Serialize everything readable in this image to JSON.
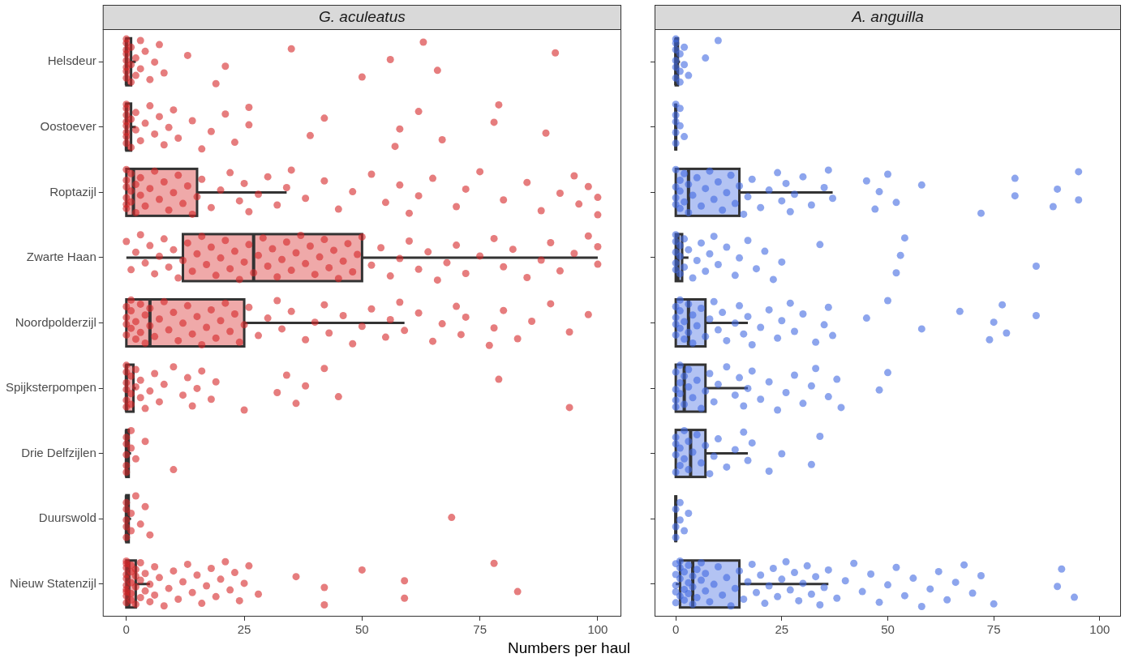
{
  "x_label": "Numbers per haul",
  "chart_data": [
    {
      "type": "box",
      "title": "G. aculeatus",
      "orientation": "horizontal",
      "color": "#d62728",
      "grid": false,
      "categories": [
        "Helsdeur",
        "Oostoever",
        "Roptazijl",
        "Zwarte Haan",
        "Noordpolderzijl",
        "Spijksterpompen",
        "Drie Delfzijlen",
        "Duurswold",
        "Nieuw Statenzijl"
      ],
      "xlim": [
        -5,
        105
      ],
      "xticks": [
        0,
        25,
        50,
        75,
        100
      ],
      "boxes": [
        {
          "low": 0,
          "q1": 0,
          "median": 0,
          "q3": 1,
          "high": 2
        },
        {
          "low": 0,
          "q1": 0,
          "median": 0,
          "q3": 1,
          "high": 2
        },
        {
          "low": 0,
          "q1": 0,
          "median": 1.5,
          "q3": 15,
          "high": 34
        },
        {
          "low": 0,
          "q1": 12,
          "median": 27,
          "q3": 50,
          "high": 100
        },
        {
          "low": 0,
          "q1": 0,
          "median": 5,
          "q3": 25,
          "high": 59
        },
        {
          "low": 0,
          "q1": 0,
          "median": 0,
          "q3": 1.5,
          "high": 2
        },
        {
          "low": 0,
          "q1": 0,
          "median": 0,
          "q3": 0.5,
          "high": 1
        },
        {
          "low": 0,
          "q1": 0,
          "median": 0,
          "q3": 0.5,
          "high": 1
        },
        {
          "low": 0,
          "q1": 0,
          "median": 0.5,
          "q3": 2,
          "high": 5
        }
      ],
      "points": [
        [
          0,
          0,
          0,
          0,
          0,
          0,
          0,
          0,
          1,
          1,
          1,
          2,
          2,
          3,
          3,
          4,
          5,
          6,
          7,
          8,
          13,
          19,
          21,
          35,
          50,
          56,
          63,
          66,
          91
        ],
        [
          0,
          0,
          0,
          0,
          0,
          0,
          0,
          0,
          1,
          1,
          2,
          2,
          3,
          4,
          5,
          6,
          7,
          8,
          9,
          10,
          11,
          14,
          16,
          18,
          21,
          23,
          26,
          26,
          39,
          42,
          57,
          58,
          62,
          67,
          78,
          79,
          89
        ],
        [
          0,
          0,
          0,
          0,
          0,
          0,
          1,
          1,
          1,
          2,
          2,
          3,
          3,
          4,
          5,
          6,
          7,
          8,
          9,
          10,
          11,
          12,
          13,
          14,
          15,
          16,
          18,
          20,
          22,
          24,
          25,
          26,
          28,
          30,
          32,
          34,
          35,
          38,
          42,
          45,
          48,
          52,
          55,
          58,
          60,
          62,
          65,
          70,
          72,
          75,
          80,
          85,
          88,
          92,
          95,
          96,
          98,
          100,
          100
        ],
        [
          0,
          1,
          2,
          3,
          4,
          5,
          6,
          7,
          8,
          9,
          10,
          11,
          12,
          13,
          14,
          15,
          16,
          17,
          18,
          19,
          20,
          21,
          22,
          23,
          24,
          25,
          26,
          27,
          28,
          29,
          30,
          31,
          32,
          33,
          34,
          35,
          36,
          37,
          38,
          39,
          40,
          41,
          42,
          43,
          44,
          45,
          46,
          47,
          48,
          49,
          50,
          52,
          54,
          56,
          58,
          60,
          62,
          64,
          66,
          68,
          70,
          72,
          75,
          78,
          80,
          82,
          85,
          88,
          90,
          92,
          95,
          98,
          100,
          100
        ],
        [
          0,
          0,
          0,
          0,
          1,
          1,
          1,
          2,
          2,
          3,
          3,
          4,
          4,
          5,
          5,
          6,
          7,
          8,
          9,
          10,
          11,
          12,
          13,
          14,
          15,
          16,
          17,
          18,
          19,
          20,
          21,
          22,
          23,
          24,
          25,
          26,
          28,
          30,
          32,
          33,
          35,
          38,
          40,
          42,
          43,
          46,
          48,
          50,
          52,
          55,
          56,
          58,
          59,
          62,
          65,
          67,
          70,
          71,
          72,
          77,
          78,
          80,
          83,
          86,
          90,
          94,
          98
        ],
        [
          0,
          0,
          0,
          0,
          0,
          0,
          1,
          1,
          1,
          2,
          2,
          3,
          3,
          4,
          5,
          6,
          7,
          8,
          10,
          12,
          13,
          14,
          15,
          16,
          18,
          19,
          25,
          32,
          34,
          36,
          38,
          42,
          45,
          79,
          94
        ],
        [
          0,
          0,
          0,
          0,
          0,
          1,
          1,
          2,
          4,
          10
        ],
        [
          0,
          0,
          0,
          0,
          0,
          1,
          1,
          2,
          3,
          4,
          5,
          69
        ],
        [
          0,
          0,
          0,
          0,
          0,
          0,
          0,
          0,
          0,
          0,
          1,
          1,
          1,
          1,
          1,
          2,
          2,
          2,
          2,
          3,
          3,
          3,
          4,
          4,
          5,
          5,
          6,
          6,
          7,
          8,
          9,
          10,
          11,
          12,
          13,
          14,
          15,
          16,
          17,
          18,
          19,
          20,
          21,
          22,
          23,
          24,
          25,
          26,
          28,
          36,
          42,
          42,
          50,
          59,
          59,
          78,
          83
        ]
      ]
    },
    {
      "type": "box",
      "title": "A. anguilla",
      "orientation": "horizontal",
      "color": "#4169e1",
      "grid": false,
      "tick_labels": "x",
      "categories": [
        "Helsdeur",
        "Oostoever",
        "Roptazijl",
        "Zwarte Haan",
        "Noordpolderzijl",
        "Spijksterpompen",
        "Drie Delfzijlen",
        "Duurswold",
        "Nieuw Statenzijl"
      ],
      "xlim": [
        -5,
        105
      ],
      "xticks": [
        0,
        25,
        50,
        75,
        100
      ],
      "boxes": [
        {
          "low": 0,
          "q1": 0,
          "median": 0,
          "q3": 0.5,
          "high": 1
        },
        {
          "low": 0,
          "q1": 0,
          "median": 0,
          "q3": 0,
          "high": 0
        },
        {
          "low": 0,
          "q1": 0,
          "median": 3,
          "q3": 15,
          "high": 37
        },
        {
          "low": 0,
          "q1": 0,
          "median": 0.5,
          "q3": 1.5,
          "high": 3
        },
        {
          "low": 0,
          "q1": 0,
          "median": 3,
          "q3": 7,
          "high": 17
        },
        {
          "low": 0,
          "q1": 0,
          "median": 2,
          "q3": 7,
          "high": 17
        },
        {
          "low": 0,
          "q1": 0,
          "median": 3.5,
          "q3": 7,
          "high": 17
        },
        {
          "low": 0,
          "q1": 0,
          "median": 0,
          "q3": 0,
          "high": 0
        },
        {
          "low": 0,
          "q1": 1,
          "median": 4,
          "q3": 15,
          "high": 36
        }
      ],
      "points": [
        [
          0,
          0,
          0,
          0,
          0,
          0,
          1,
          1,
          1,
          2,
          2,
          3,
          7,
          10
        ],
        [
          0,
          0,
          0,
          0,
          0,
          1,
          1,
          2
        ],
        [
          0,
          0,
          0,
          0,
          1,
          1,
          1,
          2,
          2,
          3,
          3,
          4,
          5,
          6,
          7,
          8,
          9,
          10,
          11,
          12,
          13,
          14,
          15,
          16,
          17,
          18,
          20,
          22,
          24,
          25,
          26,
          27,
          28,
          30,
          32,
          35,
          36,
          37,
          45,
          47,
          48,
          50,
          52,
          58,
          72,
          80,
          80,
          89,
          90,
          95,
          95
        ],
        [
          0,
          0,
          0,
          0,
          0,
          1,
          1,
          1,
          2,
          2,
          3,
          4,
          5,
          6,
          7,
          8,
          9,
          10,
          12,
          14,
          15,
          17,
          19,
          21,
          23,
          25,
          34,
          52,
          53,
          54,
          85
        ],
        [
          0,
          0,
          0,
          0,
          1,
          1,
          1,
          2,
          2,
          3,
          3,
          4,
          4,
          5,
          6,
          7,
          8,
          9,
          10,
          11,
          12,
          14,
          15,
          16,
          17,
          18,
          20,
          22,
          24,
          25,
          27,
          28,
          30,
          33,
          35,
          36,
          37,
          45,
          50,
          58,
          67,
          74,
          75,
          77,
          78,
          85
        ],
        [
          0,
          0,
          0,
          0,
          1,
          1,
          1,
          2,
          2,
          3,
          3,
          4,
          5,
          6,
          7,
          8,
          9,
          10,
          12,
          14,
          15,
          16,
          17,
          18,
          20,
          22,
          24,
          26,
          28,
          30,
          32,
          33,
          36,
          38,
          39,
          48,
          50
        ],
        [
          0,
          0,
          0,
          0,
          1,
          1,
          2,
          2,
          3,
          3,
          4,
          5,
          6,
          7,
          8,
          9,
          10,
          12,
          14,
          16,
          17,
          18,
          22,
          25,
          34,
          32
        ],
        [
          0,
          0,
          0,
          1,
          1,
          2,
          3
        ],
        [
          0,
          0,
          0,
          0,
          0,
          1,
          1,
          1,
          1,
          2,
          2,
          2,
          3,
          3,
          3,
          4,
          4,
          4,
          5,
          5,
          6,
          6,
          7,
          7,
          8,
          9,
          10,
          11,
          12,
          13,
          14,
          15,
          16,
          17,
          18,
          19,
          20,
          21,
          22,
          23,
          24,
          25,
          26,
          27,
          28,
          29,
          30,
          31,
          32,
          33,
          34,
          35,
          36,
          38,
          40,
          42,
          44,
          46,
          48,
          50,
          52,
          54,
          56,
          58,
          60,
          62,
          64,
          66,
          68,
          70,
          72,
          75,
          90,
          91,
          94
        ]
      ]
    }
  ]
}
